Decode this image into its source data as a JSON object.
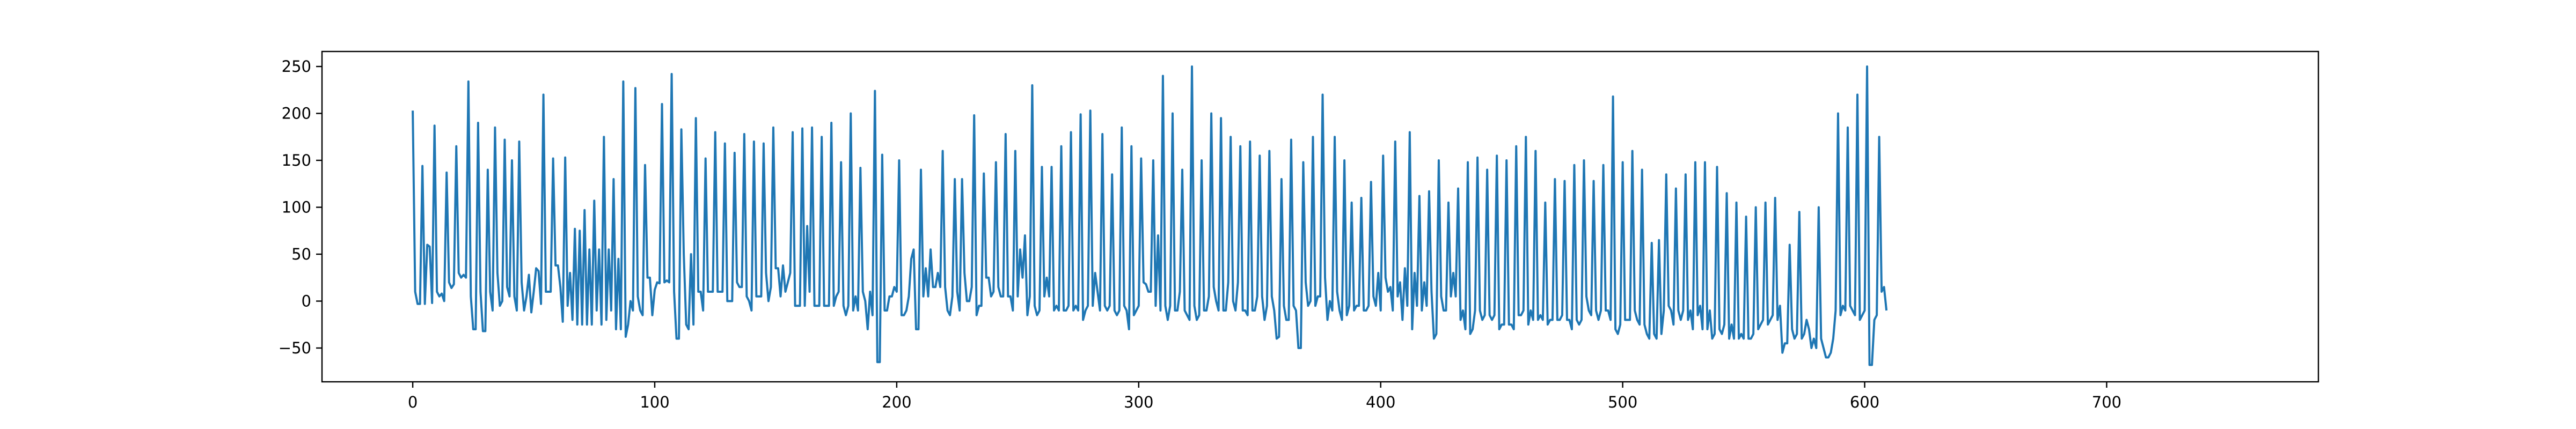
{
  "chart_data": {
    "type": "line",
    "title": "",
    "xlabel": "",
    "ylabel": "",
    "xlim": [
      -37.5,
      787.5
    ],
    "ylim": [
      -86,
      266
    ],
    "x_ticks": [
      0,
      100,
      200,
      300,
      400,
      500,
      600,
      700
    ],
    "y_ticks": [
      -50,
      0,
      50,
      100,
      150,
      200,
      250
    ],
    "x_tick_labels": [
      "0",
      "100",
      "200",
      "300",
      "400",
      "500",
      "600",
      "700"
    ],
    "y_tick_labels": [
      "−50",
      "0",
      "50",
      "100",
      "150",
      "200",
      "250"
    ],
    "grid": false,
    "legend": "none",
    "series_color": "#1f77b4",
    "series": [
      {
        "values": [
          203,
          10,
          -3,
          -3,
          144,
          -3,
          60,
          58,
          -2,
          187,
          10,
          5,
          8,
          0,
          137,
          20,
          14,
          18,
          165,
          30,
          25,
          28,
          25,
          234,
          5,
          -30,
          -30,
          190,
          10,
          -32,
          -32,
          140,
          10,
          -10,
          185,
          30,
          -5,
          0,
          172,
          15,
          5,
          150,
          5,
          -10,
          170,
          20,
          -10,
          5,
          28,
          -12,
          10,
          35,
          32,
          -3,
          220,
          10,
          10,
          10,
          152,
          38,
          38,
          15,
          -22,
          153,
          -5,
          30,
          -20,
          77,
          -25,
          75,
          -25,
          97,
          -25,
          55,
          -25,
          107,
          -10,
          55,
          -25,
          175,
          -20,
          55,
          -10,
          130,
          -30,
          45,
          -30,
          234,
          -38,
          -25,
          0,
          -10,
          227,
          5,
          -10,
          -15,
          145,
          25,
          25,
          -15,
          12,
          20,
          19,
          210,
          20,
          22,
          20,
          242,
          10,
          -40,
          -40,
          183,
          50,
          -25,
          -30,
          50,
          -25,
          195,
          10,
          10,
          -10,
          152,
          10,
          10,
          10,
          180,
          10,
          10,
          10,
          168,
          0,
          0,
          0,
          158,
          20,
          15,
          15,
          178,
          5,
          0,
          -10,
          170,
          5,
          5,
          5,
          168,
          30,
          0,
          15,
          185,
          35,
          35,
          5,
          38,
          10,
          20,
          30,
          180,
          -5,
          -5,
          -5,
          184,
          -5,
          80,
          10,
          185,
          -5,
          -5,
          -5,
          175,
          -5,
          -5,
          -5,
          190,
          -5,
          5,
          10,
          148,
          -5,
          -15,
          -5,
          200,
          -10,
          5,
          -10,
          142,
          10,
          0,
          -30,
          10,
          -15,
          224,
          -65,
          -65,
          156,
          -10,
          -10,
          5,
          5,
          15,
          10,
          150,
          -15,
          -15,
          -10,
          5,
          45,
          55,
          -30,
          -30,
          140,
          5,
          35,
          5,
          55,
          15,
          15,
          30,
          15,
          160,
          15,
          -10,
          -15,
          5,
          130,
          10,
          -10,
          130,
          30,
          0,
          0,
          15,
          198,
          -15,
          -5,
          -5,
          136,
          25,
          25,
          5,
          10,
          148,
          15,
          5,
          5,
          178,
          5,
          5,
          -10,
          160,
          5,
          55,
          25,
          70,
          -15,
          5,
          230,
          -5,
          -15,
          -10,
          143,
          5,
          25,
          5,
          143,
          -10,
          -5,
          -10,
          165,
          -10,
          -10,
          -5,
          180,
          -10,
          -5,
          -10,
          199,
          -20,
          -10,
          -5,
          203,
          -5,
          30,
          10,
          -10,
          178,
          -5,
          -10,
          -5,
          135,
          -10,
          -15,
          -10,
          185,
          -5,
          -10,
          -30,
          165,
          -15,
          -10,
          -5,
          152,
          20,
          18,
          10,
          10,
          150,
          -5,
          70,
          -10,
          240,
          -5,
          -20,
          -5,
          200,
          -10,
          -10,
          10,
          140,
          -10,
          -15,
          -20,
          250,
          -5,
          -20,
          -15,
          150,
          -10,
          -10,
          5,
          200,
          15,
          0,
          -10,
          195,
          -10,
          -10,
          20,
          175,
          0,
          -10,
          20,
          165,
          -10,
          -10,
          -15,
          170,
          -10,
          -10,
          5,
          155,
          5,
          -20,
          -5,
          160,
          5,
          -10,
          -40,
          -38,
          130,
          -5,
          -20,
          -20,
          172,
          -5,
          -10,
          -50,
          -50,
          148,
          20,
          -5,
          0,
          175,
          -5,
          5,
          5,
          220,
          25,
          -20,
          0,
          -10,
          175,
          10,
          -10,
          -20,
          150,
          -15,
          -5,
          105,
          -10,
          -5,
          -5,
          110,
          -10,
          -10,
          -5,
          127,
          5,
          -5,
          30,
          -10,
          155,
          25,
          10,
          15,
          -10,
          170,
          5,
          20,
          -20,
          35,
          -5,
          180,
          -30,
          30,
          -5,
          112,
          -10,
          20,
          -5,
          117,
          10,
          -40,
          -35,
          150,
          5,
          -10,
          -10,
          105,
          5,
          30,
          5,
          120,
          -20,
          -10,
          -30,
          148,
          -35,
          -30,
          -10,
          153,
          -10,
          -20,
          -15,
          140,
          -15,
          -20,
          -15,
          155,
          -30,
          -25,
          -25,
          150,
          -25,
          -25,
          -30,
          165,
          -15,
          -15,
          -10,
          175,
          -25,
          -10,
          -20,
          160,
          -20,
          -15,
          -20,
          105,
          -25,
          -20,
          -20,
          130,
          -20,
          -20,
          -15,
          128,
          -20,
          -20,
          -30,
          145,
          -20,
          -25,
          -20,
          150,
          5,
          -10,
          -15,
          128,
          -10,
          -20,
          -10,
          145,
          -10,
          -10,
          -20,
          218,
          -30,
          -35,
          -25,
          148,
          -20,
          -20,
          -20,
          160,
          -10,
          -20,
          -25,
          140,
          -25,
          -35,
          -40,
          62,
          -35,
          -40,
          65,
          -35,
          -10,
          135,
          -5,
          -10,
          -25,
          120,
          -10,
          -20,
          -10,
          135,
          -20,
          -10,
          -30,
          148,
          -15,
          -5,
          -30,
          148,
          -30,
          -10,
          -40,
          -35,
          143,
          -30,
          -35,
          -25,
          115,
          -40,
          -25,
          -40,
          105,
          -40,
          -35,
          -40,
          90,
          -40,
          -40,
          -35,
          100,
          -30,
          -25,
          -20,
          105,
          -25,
          -20,
          -15,
          110,
          -20,
          -5,
          -55,
          -45,
          -45,
          60,
          -30,
          -40,
          -35,
          95,
          -40,
          -35,
          -20,
          -30,
          -50,
          -40,
          -50,
          100,
          -40,
          -50,
          -60,
          -60,
          -55,
          -40,
          -10,
          200,
          -15,
          -5,
          -10,
          185,
          -5,
          -10,
          -15,
          220,
          -20,
          -15,
          -10,
          250,
          -68,
          -68,
          -20,
          -15,
          175,
          10,
          15,
          -10
        ]
      }
    ]
  }
}
